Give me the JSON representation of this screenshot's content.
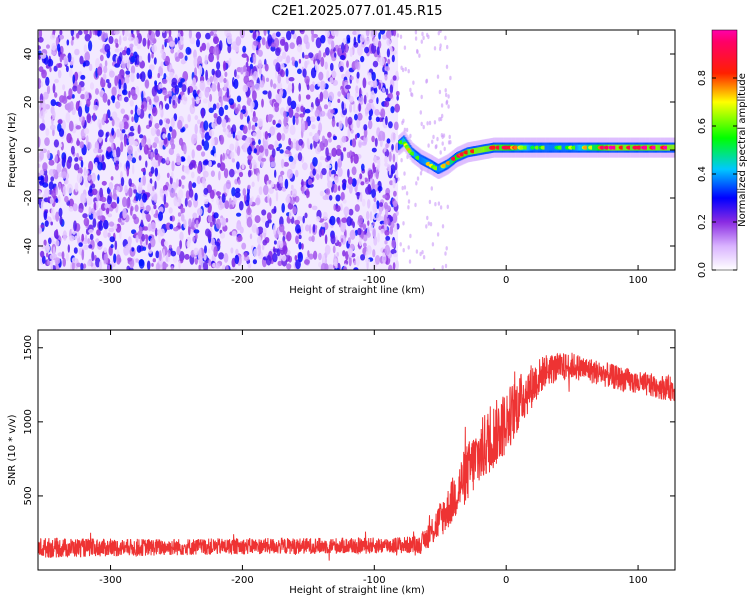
{
  "figure": {
    "title": "C2E1.2025.077.01.45.R15"
  },
  "chart_data": [
    {
      "type": "heatmap",
      "xlabel": "Height of straight line (km)",
      "ylabel": "Frequency (Hz)",
      "xlim": [
        -355,
        128
      ],
      "ylim": [
        -50,
        50
      ],
      "xticks": [
        -300,
        -200,
        -100,
        0,
        100
      ],
      "yticks": [
        -40,
        -20,
        0,
        20,
        40
      ],
      "colorbar": {
        "label": "Normalized spectral amplitude",
        "range": [
          0,
          1
        ],
        "ticks": [
          "0.0",
          "0.2",
          "0.4",
          "0.6",
          "0.8"
        ],
        "tick_values": [
          0,
          0.2,
          0.4,
          0.6,
          0.8
        ],
        "colormap": [
          "#ffffff",
          "#8a2be2",
          "#0000ff",
          "#00ffff",
          "#00ff00",
          "#ffff00",
          "#ff0000",
          "#ff00ff"
        ]
      },
      "noise_region": {
        "x_range": [
          -355,
          -82
        ],
        "y_range": [
          -50,
          50
        ],
        "amplitude": [
          0.0,
          0.3
        ]
      },
      "signal_trace": [
        {
          "x": -82,
          "y": 2,
          "amp": 0.45
        },
        {
          "x": -78,
          "y": 4,
          "amp": 0.6
        },
        {
          "x": -72,
          "y": -1,
          "amp": 0.55
        },
        {
          "x": -65,
          "y": -4,
          "amp": 0.5
        },
        {
          "x": -58,
          "y": -6,
          "amp": 0.55
        },
        {
          "x": -52,
          "y": -8,
          "amp": 0.5
        },
        {
          "x": -45,
          "y": -6,
          "amp": 0.6
        },
        {
          "x": -38,
          "y": -3,
          "amp": 0.75
        },
        {
          "x": -30,
          "y": -1,
          "amp": 0.8
        },
        {
          "x": -20,
          "y": 0,
          "amp": 0.85
        },
        {
          "x": -10,
          "y": 1,
          "amp": 0.8
        },
        {
          "x": 0,
          "y": 1,
          "amp": 0.75
        },
        {
          "x": 20,
          "y": 1,
          "amp": 0.5
        },
        {
          "x": 50,
          "y": 1,
          "amp": 0.5
        },
        {
          "x": 80,
          "y": 1,
          "amp": 0.85
        },
        {
          "x": 100,
          "y": 1,
          "amp": 0.8
        },
        {
          "x": 128,
          "y": 1,
          "amp": 0.85
        }
      ]
    },
    {
      "type": "line",
      "xlabel": "Height of straight line (km)",
      "ylabel": "SNR (10 * v/v)",
      "xlim": [
        -355,
        128
      ],
      "ylim": [
        0,
        1620
      ],
      "xticks": [
        -300,
        -200,
        -100,
        0,
        100
      ],
      "yticks": [
        500,
        1000,
        1500
      ],
      "series": [
        {
          "color": "#ee3333",
          "envelope": [
            {
              "x": -355,
              "y": 150,
              "noise": 70
            },
            {
              "x": -300,
              "y": 150,
              "noise": 60
            },
            {
              "x": -200,
              "y": 160,
              "noise": 55
            },
            {
              "x": -100,
              "y": 165,
              "noise": 55
            },
            {
              "x": -65,
              "y": 170,
              "noise": 60
            },
            {
              "x": -55,
              "y": 280,
              "noise": 110
            },
            {
              "x": -45,
              "y": 400,
              "noise": 140
            },
            {
              "x": -30,
              "y": 650,
              "noise": 200
            },
            {
              "x": -15,
              "y": 850,
              "noise": 230
            },
            {
              "x": 0,
              "y": 1000,
              "noise": 220
            },
            {
              "x": 15,
              "y": 1200,
              "noise": 170
            },
            {
              "x": 30,
              "y": 1350,
              "noise": 110
            },
            {
              "x": 50,
              "y": 1380,
              "noise": 90
            },
            {
              "x": 75,
              "y": 1320,
              "noise": 85
            },
            {
              "x": 100,
              "y": 1260,
              "noise": 80
            },
            {
              "x": 128,
              "y": 1220,
              "noise": 85
            }
          ]
        }
      ]
    }
  ]
}
